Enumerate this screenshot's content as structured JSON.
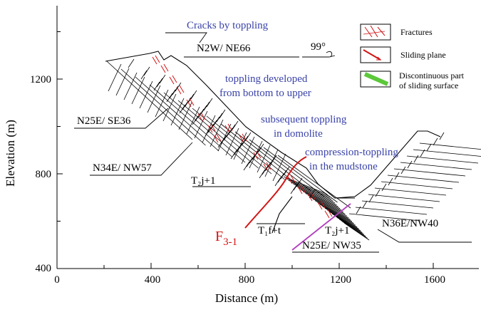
{
  "colors": {
    "blue_text": "#3a43a8",
    "red": "#d21414",
    "magenta": "#b13fbf",
    "green": "#5cc83a",
    "black": "#000000"
  },
  "axes": {
    "x_title": "Distance (m)",
    "y_title": "Elevation (m)",
    "x_ticks": [
      "0",
      "400",
      "800",
      "1200",
      "1600"
    ],
    "y_ticks": [
      "400",
      "800",
      "1200"
    ]
  },
  "annotations": {
    "cracks": "Cracks by toppling",
    "n2w": "N2W/ NE66",
    "bearing": "99°",
    "toppling_line1": "toppling developed",
    "toppling_line2": "from bottom to upper",
    "n25e_se36": "N25E/ SE36",
    "subsequent_line1": "subsequent toppling",
    "subsequent_line2": "in domolite",
    "compression_line1": "compression-toppling",
    "compression_line2": "in the mudstone",
    "n34e_nw57": "N34E/ NW57",
    "t2j_upper": "T₂j+1",
    "t1f": "T₁f+t",
    "t2j_lower": "T₂j+1",
    "n36e": "N36E/NW40",
    "n25e_nw35": "N25E/ NW35",
    "fault": "F",
    "fault_sub": "3-1"
  },
  "legend": {
    "fractures": "Fractures",
    "sliding_plane": "Sliding plane",
    "discontinuous_line1": "Discontinuous part",
    "discontinuous_line2": "of sliding surface"
  }
}
